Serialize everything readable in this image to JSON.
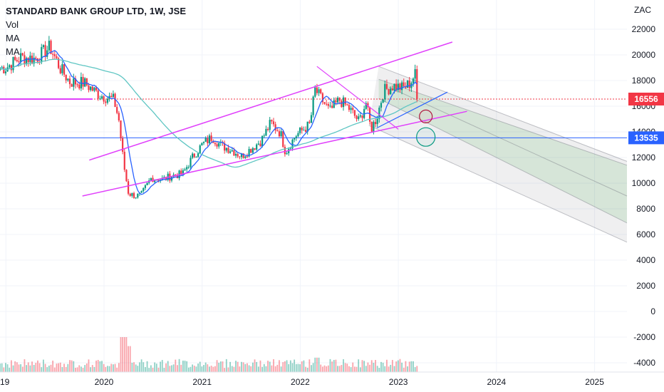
{
  "legend": {
    "title": "STANDARD BANK GROUP LTD, 1W, JSE",
    "indicators": [
      "Vol",
      "MA",
      "MA"
    ]
  },
  "chart_data": {
    "type": "candlestick",
    "currency": "ZAC",
    "title": "STANDARD BANK GROUP LTD, 1W, JSE",
    "y_ticks": [
      22000,
      20000,
      18000,
      16000,
      14000,
      12000,
      10000,
      8000,
      6000,
      4000,
      2000,
      0,
      -2000,
      -4000
    ],
    "x_ticks": [
      "19",
      "2020",
      "2021",
      "2022",
      "2023",
      "2024",
      "2025"
    ],
    "ylim": [
      -4700,
      23500
    ],
    "grid": true,
    "price_labels": [
      {
        "value": 16556,
        "text": "16556",
        "color": "#f23645"
      },
      {
        "value": 13535,
        "text": "13535",
        "color": "#2962ff"
      }
    ],
    "price_path": [
      [
        2019.0,
        19000
      ],
      [
        2019.15,
        19800
      ],
      [
        2019.3,
        19700
      ],
      [
        2019.45,
        20600
      ],
      [
        2019.55,
        19000
      ],
      [
        2019.65,
        17900
      ],
      [
        2019.8,
        17800
      ],
      [
        2019.95,
        16900
      ],
      [
        2020.1,
        16500
      ],
      [
        2020.15,
        15000
      ],
      [
        2020.2,
        11500
      ],
      [
        2020.25,
        9200
      ],
      [
        2020.32,
        9000
      ],
      [
        2020.38,
        9100
      ],
      [
        2020.48,
        10400
      ],
      [
        2020.6,
        10300
      ],
      [
        2020.7,
        10600
      ],
      [
        2020.8,
        10700
      ],
      [
        2020.9,
        12000
      ],
      [
        2021.0,
        13000
      ],
      [
        2021.1,
        13600
      ],
      [
        2021.2,
        12900
      ],
      [
        2021.3,
        12600
      ],
      [
        2021.4,
        12100
      ],
      [
        2021.5,
        12700
      ],
      [
        2021.6,
        13300
      ],
      [
        2021.7,
        14700
      ],
      [
        2021.8,
        13900
      ],
      [
        2021.85,
        12400
      ],
      [
        2021.95,
        13700
      ],
      [
        2022.1,
        14600
      ],
      [
        2022.15,
        17300
      ],
      [
        2022.22,
        16500
      ],
      [
        2022.3,
        15600
      ],
      [
        2022.4,
        16500
      ],
      [
        2022.5,
        15800
      ],
      [
        2022.6,
        14800
      ],
      [
        2022.67,
        16300
      ],
      [
        2022.72,
        14200
      ],
      [
        2022.78,
        15100
      ],
      [
        2022.85,
        17200
      ],
      [
        2022.95,
        17600
      ],
      [
        2023.05,
        17400
      ],
      [
        2023.12,
        17800
      ],
      [
        2023.17,
        18500
      ],
      [
        2023.2,
        16556
      ]
    ],
    "volume_bars": "per-week volume histogram plotted against the price axis (0 to about 2700), spikes near 2020.2, 2022.17 and 2023.2",
    "annotations": [
      "ascending channel (magenta) from 2020 lows to 2023",
      "descending pitchfork channel projected into 2025 (grey and green fill)",
      "horizontal support line at 13535 (blue)",
      "dotted current-price line at 16556 (red)",
      "two circle markers near 2023.3"
    ]
  }
}
